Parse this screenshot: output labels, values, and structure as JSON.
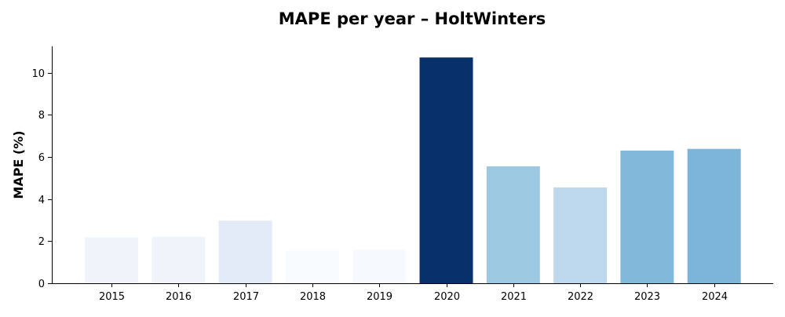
{
  "chart_data": {
    "type": "bar",
    "title": "MAPE per year – HoltWinters",
    "xlabel": "",
    "ylabel": "MAPE (%)",
    "categories": [
      "2015",
      "2016",
      "2017",
      "2018",
      "2019",
      "2020",
      "2021",
      "2022",
      "2023",
      "2024"
    ],
    "values": [
      2.18,
      2.2,
      2.97,
      1.55,
      1.6,
      10.72,
      5.55,
      4.55,
      6.3,
      6.38
    ],
    "ylim": [
      0,
      11.25
    ],
    "yticks": [
      0,
      2,
      4,
      6,
      8,
      10
    ],
    "grid": false,
    "legend": "none",
    "colormap": "Blues",
    "colors": [
      "#eff4fb",
      "#eff4fb",
      "#e2ebf6",
      "#f7fbff",
      "#f6faff",
      "#08306b",
      "#9cc8e1",
      "#bdd8ec",
      "#82b8d9",
      "#7db5d8"
    ]
  }
}
